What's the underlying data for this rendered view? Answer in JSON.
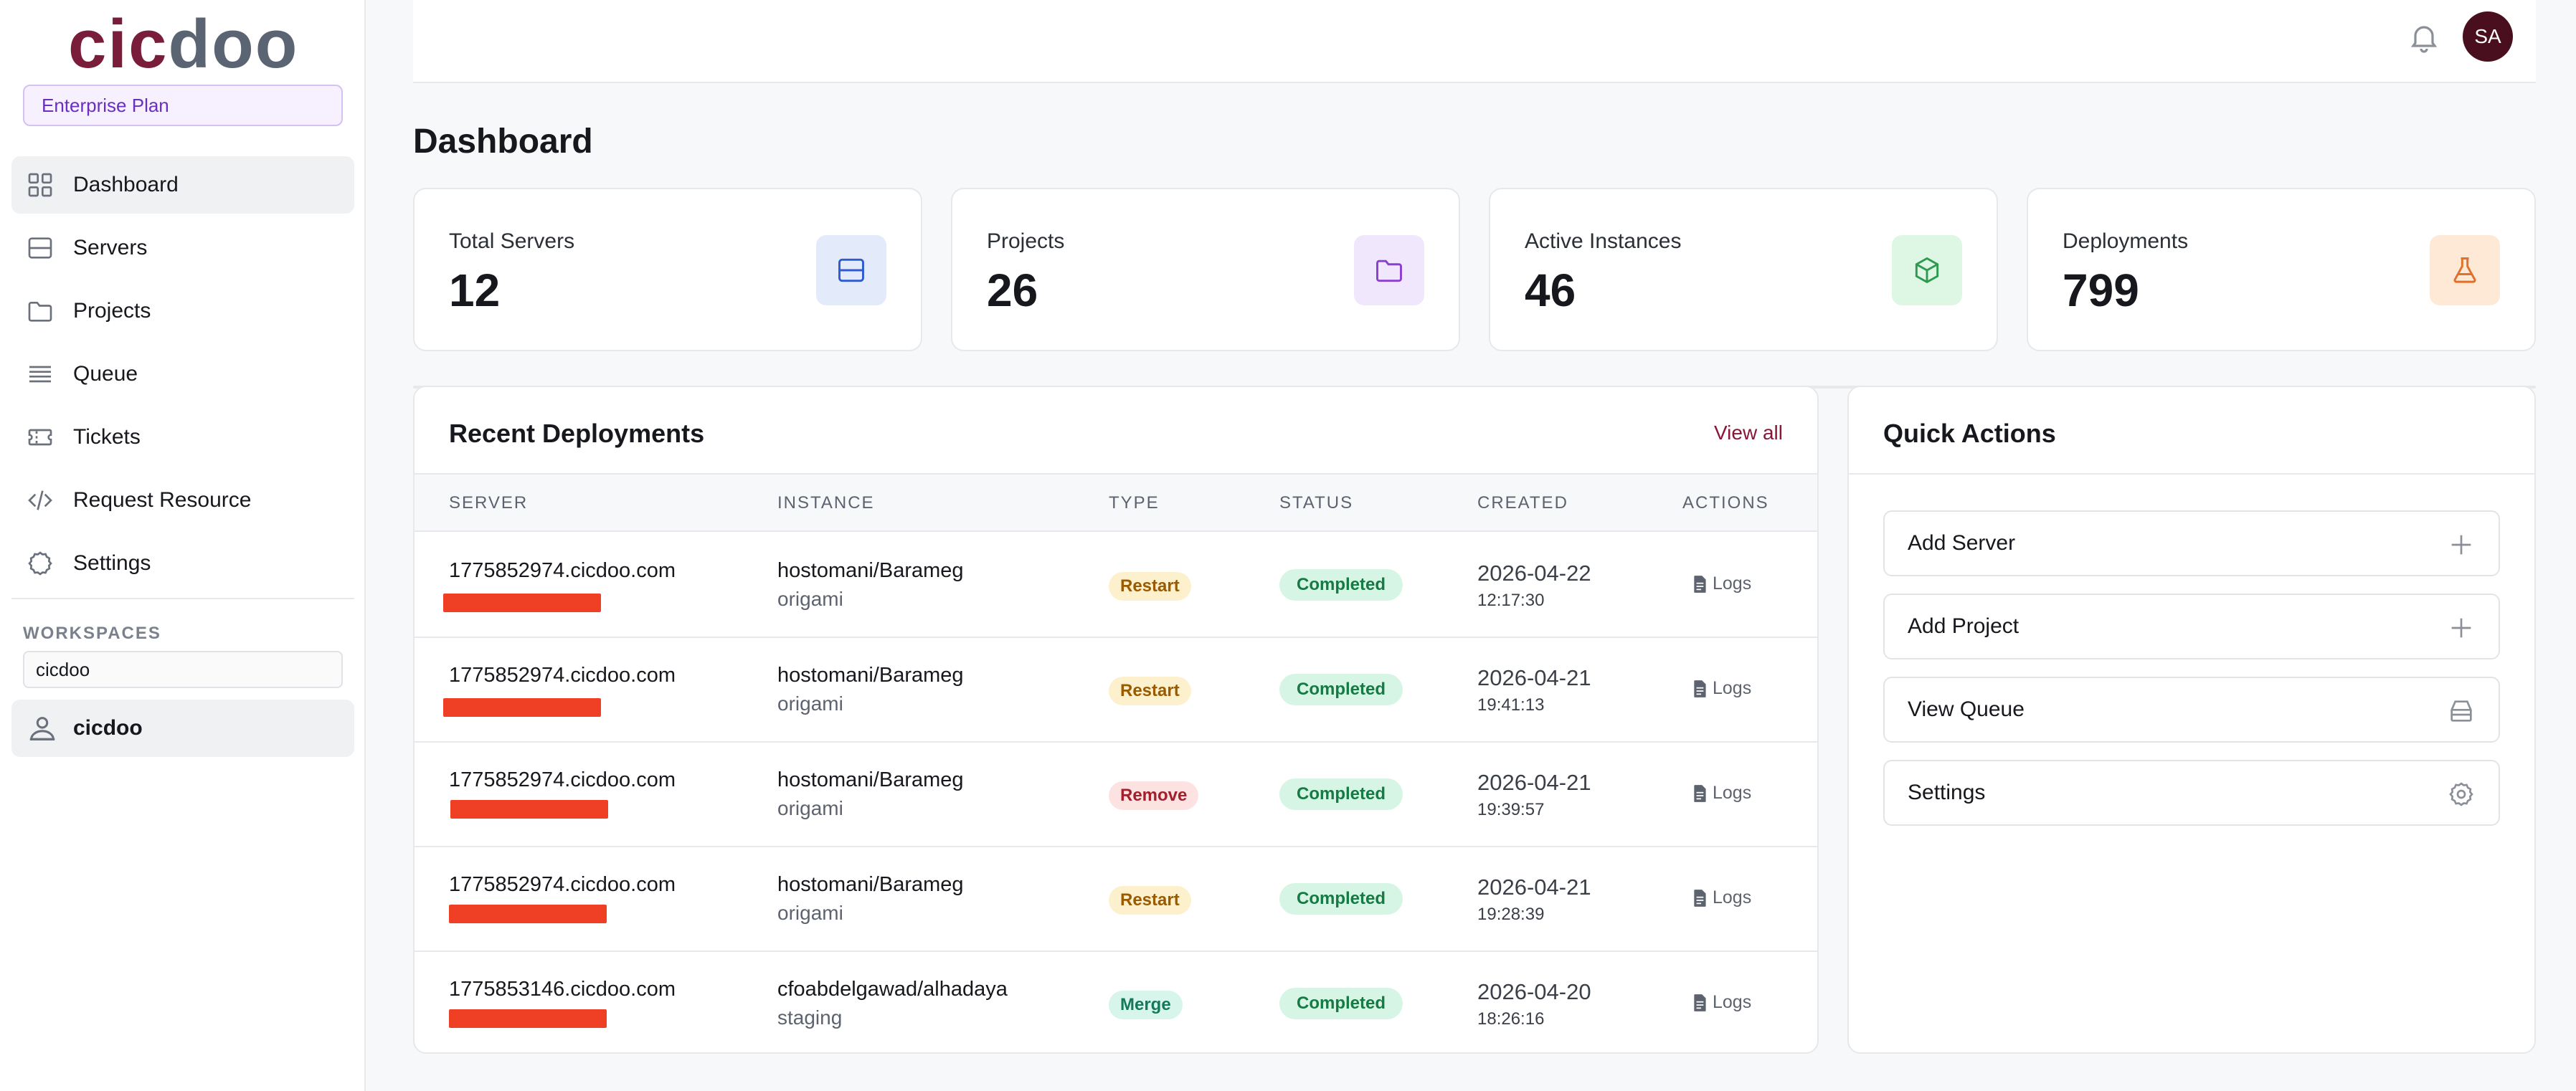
{
  "sidebar": {
    "logo": {
      "part1": "cic",
      "part2": "doo"
    },
    "plan": "Enterprise Plan",
    "nav": [
      {
        "label": "Dashboard",
        "icon": "grid-icon",
        "active": true
      },
      {
        "label": "Servers",
        "icon": "server-icon",
        "active": false
      },
      {
        "label": "Projects",
        "icon": "folder-icon",
        "active": false
      },
      {
        "label": "Queue",
        "icon": "list-icon",
        "active": false
      },
      {
        "label": "Tickets",
        "icon": "ticket-icon",
        "active": false
      },
      {
        "label": "Request Resource",
        "icon": "code-icon",
        "active": false
      },
      {
        "label": "Settings",
        "icon": "gear-icon",
        "active": false
      }
    ],
    "workspaces": {
      "label": "WORKSPACES",
      "search_value": "cicdoo",
      "items": [
        {
          "label": "cicdoo",
          "icon": "user-group-icon"
        }
      ]
    }
  },
  "header": {
    "avatar_initials": "SA",
    "notification_icon": "bell-icon"
  },
  "main": {
    "title": "Dashboard",
    "stats": [
      {
        "label": "Total Servers",
        "value": "12",
        "icon": "server-icon",
        "bg": "#e3ebfb",
        "fg": "#2f5bd1"
      },
      {
        "label": "Projects",
        "value": "26",
        "icon": "folder-icon",
        "bg": "#f1e7fc",
        "fg": "#8a3fd1"
      },
      {
        "label": "Active Instances",
        "value": "46",
        "icon": "cube-icon",
        "bg": "#def7e5",
        "fg": "#2d9a4f"
      },
      {
        "label": "Deployments",
        "value": "799",
        "icon": "flask-icon",
        "bg": "#fde9d6",
        "fg": "#e0702a"
      }
    ],
    "deployments": {
      "title": "Recent Deployments",
      "view_all": "View all",
      "columns": [
        "SERVER",
        "INSTANCE",
        "TYPE",
        "STATUS",
        "CREATED",
        "ACTIONS"
      ],
      "rows": [
        {
          "server": "1775852974.cicdoo.com",
          "instance": "hostomani/Barameg",
          "env": "origami",
          "type": "Restart",
          "status": "Completed",
          "date": "2026-04-22",
          "time": "12:17:30",
          "action": "Logs"
        },
        {
          "server": "1775852974.cicdoo.com",
          "instance": "hostomani/Barameg",
          "env": "origami",
          "type": "Restart",
          "status": "Completed",
          "date": "2026-04-21",
          "time": "19:41:13",
          "action": "Logs"
        },
        {
          "server": "1775852974.cicdoo.com",
          "instance": "hostomani/Barameg",
          "env": "origami",
          "type": "Remove",
          "status": "Completed",
          "date": "2026-04-21",
          "time": "19:39:57",
          "action": "Logs"
        },
        {
          "server": "1775852974.cicdoo.com",
          "instance": "hostomani/Barameg",
          "env": "origami",
          "type": "Restart",
          "status": "Completed",
          "date": "2026-04-21",
          "time": "19:28:39",
          "action": "Logs"
        },
        {
          "server": "1775853146.cicdoo.com",
          "instance": "cfoabdelgawad/alhadaya",
          "env": "staging",
          "type": "Merge",
          "status": "Completed",
          "date": "2026-04-20",
          "time": "18:26:16",
          "action": "Logs"
        }
      ]
    },
    "quick_actions": {
      "title": "Quick Actions",
      "items": [
        {
          "label": "Add Server",
          "icon": "plus-icon"
        },
        {
          "label": "Add Project",
          "icon": "plus-icon"
        },
        {
          "label": "View Queue",
          "icon": "inbox-icon"
        },
        {
          "label": "Settings",
          "icon": "gear-icon"
        }
      ]
    }
  }
}
